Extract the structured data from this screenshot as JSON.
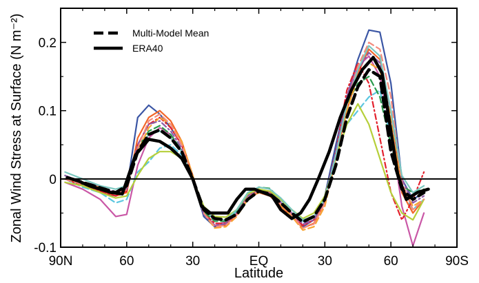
{
  "chart_data": {
    "type": "line",
    "title": "",
    "xlabel": "Latitude",
    "ylabel": "Zonal Wind Stress at Surface (N m⁻²)",
    "xlim": [
      -90,
      90
    ],
    "ylim": [
      -0.1,
      0.25
    ],
    "x_ticks": [
      {
        "value": -90,
        "label": "90N"
      },
      {
        "value": -60,
        "label": "60"
      },
      {
        "value": -30,
        "label": "30"
      },
      {
        "value": 0,
        "label": "EQ"
      },
      {
        "value": 30,
        "label": "30"
      },
      {
        "value": 60,
        "label": "60"
      },
      {
        "value": 90,
        "label": "90S"
      }
    ],
    "y_ticks": [
      {
        "value": -0.1,
        "label": "-0.1"
      },
      {
        "value": 0,
        "label": "0"
      },
      {
        "value": 0.1,
        "label": "0.1"
      },
      {
        "value": 0.2,
        "label": "0.2"
      }
    ],
    "grid": false,
    "zero_line": true,
    "legend_position": "top-left",
    "legend": [
      {
        "label": "Multi-Model Mean",
        "style": "dashed"
      },
      {
        "label": "ERA40",
        "style": "solid"
      }
    ],
    "series": [
      {
        "name": "Multi-Model Mean",
        "style": "dashed",
        "color": "#000000",
        "x": [
          -85,
          -80,
          -75,
          -70,
          -65,
          -60,
          -55,
          -50,
          -45,
          -40,
          -35,
          -30,
          -25,
          -20,
          -15,
          -10,
          -5,
          0,
          5,
          10,
          15,
          20,
          25,
          30,
          35,
          40,
          45,
          50,
          55,
          60,
          65,
          70,
          75
        ],
        "y": [
          0.0,
          -0.005,
          -0.01,
          -0.015,
          -0.02,
          -0.01,
          0.04,
          0.065,
          0.072,
          0.06,
          0.04,
          0.0,
          -0.045,
          -0.058,
          -0.06,
          -0.052,
          -0.03,
          -0.018,
          -0.022,
          -0.035,
          -0.05,
          -0.063,
          -0.055,
          -0.03,
          0.02,
          0.09,
          0.135,
          0.16,
          0.15,
          0.04,
          -0.015,
          -0.03,
          -0.02
        ]
      },
      {
        "name": "ERA40",
        "style": "solid",
        "color": "#000000",
        "x": [
          -87,
          -82,
          -77,
          -72,
          -67,
          -62,
          -56,
          -50,
          -45,
          -40,
          -35,
          -30,
          -26,
          -22,
          -18,
          -14,
          -10,
          -6,
          -2,
          2,
          6,
          10,
          15,
          19,
          23,
          27,
          32,
          37,
          42,
          47,
          52,
          56,
          60,
          63,
          67,
          72,
          77
        ],
        "y": [
          0.002,
          -0.003,
          -0.01,
          -0.015,
          -0.02,
          -0.022,
          0.035,
          0.058,
          0.055,
          0.045,
          0.03,
          0.0,
          -0.04,
          -0.05,
          -0.05,
          -0.05,
          -0.03,
          -0.015,
          -0.015,
          -0.02,
          -0.025,
          -0.045,
          -0.058,
          -0.05,
          -0.03,
          0.0,
          0.04,
          0.09,
          0.13,
          0.16,
          0.178,
          0.155,
          0.07,
          0.008,
          -0.03,
          -0.02,
          -0.015
        ]
      },
      {
        "name": "",
        "style": "solid",
        "color": "#3a55a4",
        "x": [
          -88,
          -80,
          -72,
          -65,
          -60,
          -55,
          -50,
          -45,
          -40,
          -35,
          -30,
          -25,
          -20,
          -15,
          -10,
          -5,
          0,
          5,
          10,
          15,
          20,
          25,
          30,
          35,
          40,
          45,
          50,
          55,
          60,
          65,
          70,
          75
        ],
        "y": [
          0.0,
          -0.01,
          -0.02,
          -0.025,
          -0.015,
          0.09,
          0.108,
          0.095,
          0.075,
          0.05,
          0.0,
          -0.055,
          -0.07,
          -0.066,
          -0.05,
          -0.025,
          -0.015,
          -0.02,
          -0.035,
          -0.055,
          -0.07,
          -0.06,
          -0.025,
          0.05,
          0.12,
          0.175,
          0.218,
          0.215,
          0.14,
          0.0,
          -0.03,
          -0.02
        ]
      },
      {
        "name": "",
        "style": "solid",
        "color": "#f2662a",
        "x": [
          -88,
          -80,
          -72,
          -65,
          -60,
          -55,
          -50,
          -45,
          -40,
          -35,
          -30,
          -25,
          -20,
          -15,
          -10,
          -5,
          0,
          5,
          10,
          15,
          20,
          25,
          30,
          35,
          40,
          45,
          50,
          55,
          60,
          65,
          70,
          75
        ],
        "y": [
          0.0,
          -0.008,
          -0.018,
          -0.025,
          -0.02,
          0.06,
          0.09,
          0.1,
          0.085,
          0.055,
          0.005,
          -0.05,
          -0.068,
          -0.068,
          -0.052,
          -0.028,
          -0.02,
          -0.025,
          -0.04,
          -0.055,
          -0.072,
          -0.065,
          -0.035,
          0.03,
          0.1,
          0.155,
          0.19,
          0.175,
          0.1,
          -0.02,
          -0.05,
          -0.03
        ]
      },
      {
        "name": "",
        "style": "solid",
        "color": "#c957a6",
        "x": [
          -88,
          -80,
          -72,
          -65,
          -60,
          -55,
          -50,
          -45,
          -40,
          -35,
          -30,
          -25,
          -20,
          -15,
          -10,
          -5,
          0,
          5,
          10,
          15,
          20,
          25,
          30,
          35,
          40,
          45,
          50,
          55,
          60,
          65,
          70,
          75
        ],
        "y": [
          -0.005,
          -0.015,
          -0.03,
          -0.055,
          -0.052,
          0.02,
          0.06,
          0.075,
          0.065,
          0.04,
          0.0,
          -0.05,
          -0.068,
          -0.063,
          -0.05,
          -0.025,
          -0.015,
          -0.02,
          -0.035,
          -0.05,
          -0.068,
          -0.06,
          -0.03,
          0.04,
          0.12,
          0.165,
          0.18,
          0.15,
          0.07,
          -0.04,
          -0.098,
          -0.05
        ]
      },
      {
        "name": "",
        "style": "dashed",
        "color": "#5bc6e0",
        "x": [
          -88,
          -80,
          -72,
          -65,
          -60,
          -55,
          -50,
          -45,
          -40,
          -35,
          -30,
          -25,
          -20,
          -15,
          -10,
          -5,
          0,
          5,
          10,
          15,
          20,
          25,
          30,
          35,
          40,
          45,
          50,
          55,
          60,
          65,
          70,
          75
        ],
        "y": [
          0.0,
          -0.012,
          -0.02,
          -0.035,
          -0.03,
          0.01,
          0.025,
          0.045,
          0.05,
          0.035,
          0.0,
          -0.045,
          -0.06,
          -0.06,
          -0.048,
          -0.025,
          -0.018,
          -0.02,
          -0.03,
          -0.05,
          -0.062,
          -0.055,
          -0.028,
          0.03,
          0.08,
          0.1,
          0.12,
          0.13,
          0.06,
          -0.015,
          -0.045,
          -0.03
        ]
      },
      {
        "name": "",
        "style": "dashdot",
        "color": "#e3212d",
        "x": [
          -88,
          -80,
          -72,
          -65,
          -60,
          -55,
          -50,
          -45,
          -40,
          -35,
          -30,
          -25,
          -20,
          -15,
          -10,
          -5,
          0,
          5,
          10,
          15,
          20,
          25,
          30,
          35,
          40,
          45,
          50,
          55,
          60,
          65,
          70,
          75
        ],
        "y": [
          0.0,
          -0.01,
          -0.018,
          -0.025,
          -0.018,
          0.05,
          0.08,
          0.09,
          0.075,
          0.05,
          0.0,
          -0.05,
          -0.065,
          -0.065,
          -0.05,
          -0.025,
          -0.015,
          -0.02,
          -0.035,
          -0.055,
          -0.068,
          -0.06,
          -0.03,
          0.04,
          0.13,
          0.17,
          0.14,
          0.06,
          -0.02,
          -0.06,
          -0.03,
          0.01
        ]
      },
      {
        "name": "",
        "style": "dashed",
        "color": "#2a9a4a",
        "x": [
          -88,
          -80,
          -72,
          -65,
          -60,
          -55,
          -50,
          -45,
          -40,
          -35,
          -30,
          -25,
          -20,
          -15,
          -10,
          -5,
          0,
          5,
          10,
          15,
          20,
          25,
          30,
          35,
          40,
          45,
          50,
          55,
          60,
          65,
          70,
          75
        ],
        "y": [
          0.005,
          -0.008,
          -0.015,
          -0.022,
          -0.015,
          0.045,
          0.07,
          0.078,
          0.065,
          0.042,
          0.0,
          -0.048,
          -0.062,
          -0.062,
          -0.048,
          -0.022,
          -0.012,
          -0.014,
          -0.03,
          -0.045,
          -0.06,
          -0.055,
          -0.03,
          0.035,
          0.11,
          0.14,
          0.15,
          0.12,
          0.05,
          -0.01,
          -0.02,
          -0.015
        ]
      },
      {
        "name": "",
        "style": "dashed",
        "color": "#f7a432",
        "x": [
          -88,
          -80,
          -72,
          -65,
          -60,
          -55,
          -50,
          -45,
          -40,
          -35,
          -30,
          -25,
          -20,
          -15,
          -10,
          -5,
          0,
          5,
          10,
          15,
          20,
          25,
          30,
          35,
          40,
          45,
          50,
          55,
          60,
          65,
          70,
          75
        ],
        "y": [
          0.0,
          -0.006,
          -0.012,
          -0.02,
          -0.012,
          0.04,
          0.075,
          0.09,
          0.08,
          0.055,
          0.005,
          -0.05,
          -0.072,
          -0.07,
          -0.055,
          -0.03,
          -0.02,
          -0.022,
          -0.038,
          -0.055,
          -0.075,
          -0.07,
          -0.04,
          0.03,
          0.1,
          0.15,
          0.17,
          0.16,
          0.09,
          -0.01,
          -0.04,
          -0.03
        ]
      },
      {
        "name": "",
        "style": "dashdot",
        "color": "#8e5aa8",
        "x": [
          -88,
          -80,
          -72,
          -65,
          -60,
          -55,
          -50,
          -45,
          -40,
          -35,
          -30,
          -25,
          -20,
          -15,
          -10,
          -5,
          0,
          5,
          10,
          15,
          20,
          25,
          30,
          35,
          40,
          45,
          50,
          55,
          60,
          65,
          70,
          75
        ],
        "y": [
          0.005,
          -0.005,
          -0.01,
          -0.02,
          -0.015,
          0.05,
          0.08,
          0.085,
          0.07,
          0.045,
          0.0,
          -0.052,
          -0.068,
          -0.066,
          -0.05,
          -0.025,
          -0.016,
          -0.018,
          -0.034,
          -0.05,
          -0.066,
          -0.06,
          -0.032,
          0.04,
          0.12,
          0.16,
          0.185,
          0.17,
          0.1,
          0.0,
          -0.035,
          -0.025
        ]
      },
      {
        "name": "",
        "style": "solid",
        "color": "#b6cf3a",
        "x": [
          -88,
          -80,
          -72,
          -65,
          -60,
          -55,
          -50,
          -45,
          -40,
          -35,
          -30,
          -25,
          -20,
          -15,
          -10,
          -5,
          0,
          5,
          10,
          15,
          20,
          25,
          30,
          35,
          40,
          45,
          50,
          55,
          60,
          65,
          70,
          75
        ],
        "y": [
          -0.005,
          -0.01,
          -0.02,
          -0.028,
          -0.025,
          0.005,
          0.03,
          0.04,
          0.04,
          0.03,
          0.0,
          -0.04,
          -0.055,
          -0.056,
          -0.045,
          -0.022,
          -0.015,
          -0.018,
          -0.03,
          -0.045,
          -0.058,
          -0.05,
          -0.025,
          0.03,
          0.08,
          0.11,
          0.08,
          0.03,
          -0.02,
          -0.05,
          -0.06,
          -0.03
        ]
      },
      {
        "name": "",
        "style": "dashed",
        "color": "#f48b7c",
        "x": [
          -88,
          -80,
          -72,
          -65,
          -60,
          -55,
          -50,
          -45,
          -40,
          -35,
          -30,
          -25,
          -20,
          -15,
          -10,
          -5,
          0,
          5,
          10,
          15,
          20,
          25,
          30,
          35,
          40,
          45,
          50,
          55,
          60,
          65,
          70,
          75
        ],
        "y": [
          0.0,
          -0.008,
          -0.014,
          -0.022,
          -0.016,
          0.045,
          0.085,
          0.095,
          0.08,
          0.05,
          0.002,
          -0.05,
          -0.07,
          -0.068,
          -0.053,
          -0.027,
          -0.018,
          -0.022,
          -0.037,
          -0.053,
          -0.072,
          -0.066,
          -0.036,
          0.035,
          0.11,
          0.165,
          0.2,
          0.19,
          0.12,
          -0.005,
          -0.045,
          -0.03
        ]
      },
      {
        "name": "",
        "style": "solid",
        "color": "#7cc8c0",
        "x": [
          -88,
          -80,
          -72,
          -65,
          -60,
          -55,
          -50,
          -45,
          -40,
          -35,
          -30,
          -25,
          -20,
          -15,
          -10,
          -5,
          0,
          5,
          10,
          15,
          20,
          25,
          30,
          35,
          40,
          45,
          50,
          55,
          60,
          65,
          70,
          75
        ],
        "y": [
          0.01,
          0.0,
          -0.01,
          -0.015,
          -0.01,
          0.04,
          0.065,
          0.07,
          0.06,
          0.04,
          0.0,
          -0.045,
          -0.06,
          -0.06,
          -0.045,
          -0.02,
          -0.012,
          -0.015,
          -0.028,
          -0.045,
          -0.06,
          -0.055,
          -0.03,
          0.035,
          0.11,
          0.16,
          0.195,
          0.18,
          0.1,
          0.005,
          -0.02,
          -0.01
        ]
      }
    ]
  }
}
